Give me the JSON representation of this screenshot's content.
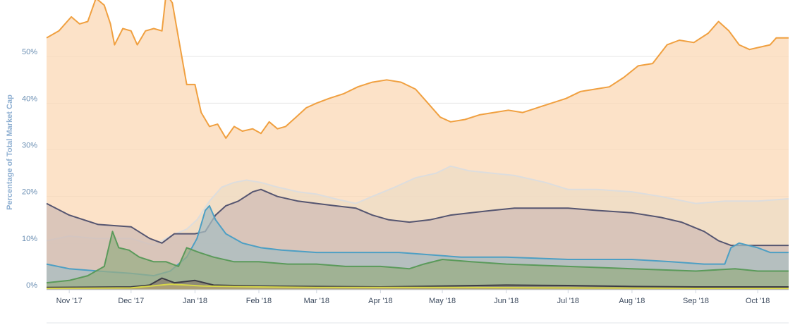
{
  "chart_data": {
    "type": "area",
    "title": "",
    "xlabel": "",
    "ylabel": "Percentage of Total Market Cap",
    "x_ticks": [
      {
        "label": "Nov '17",
        "date": "2017-11-01"
      },
      {
        "label": "Dec '17",
        "date": "2017-12-01"
      },
      {
        "label": "Jan '18",
        "date": "2018-01-01"
      },
      {
        "label": "Feb '18",
        "date": "2018-02-01"
      },
      {
        "label": "Mar '18",
        "date": "2018-03-01"
      },
      {
        "label": "Apr '18",
        "date": "2018-04-01"
      },
      {
        "label": "May '18",
        "date": "2018-05-01"
      },
      {
        "label": "Jun '18",
        "date": "2018-06-01"
      },
      {
        "label": "Jul '18",
        "date": "2018-07-01"
      },
      {
        "label": "Aug '18",
        "date": "2018-08-01"
      },
      {
        "label": "Sep '18",
        "date": "2018-09-01"
      },
      {
        "label": "Oct '18",
        "date": "2018-10-01"
      }
    ],
    "y_ticks": [
      {
        "label": "0%",
        "value": 0
      },
      {
        "label": "10%",
        "value": 10
      },
      {
        "label": "20%",
        "value": 20
      },
      {
        "label": "30%",
        "value": 30
      },
      {
        "label": "40%",
        "value": 40
      },
      {
        "label": "50%",
        "value": 50
      }
    ],
    "xlim": [
      "2017-10-21",
      "2018-10-16"
    ],
    "ylim": [
      0,
      60
    ],
    "grid": "horizontal",
    "legend": "none",
    "series": [
      {
        "color": "#f0a040",
        "fill": "#fbd8b6",
        "points": [
          [
            "2017-10-21",
            54
          ],
          [
            "2017-10-27",
            55.5
          ],
          [
            "2017-11-02",
            58.5
          ],
          [
            "2017-11-06",
            57
          ],
          [
            "2017-11-10",
            57.5
          ],
          [
            "2017-11-14",
            62.5
          ],
          [
            "2017-11-18",
            61
          ],
          [
            "2017-11-21",
            57
          ],
          [
            "2017-11-23",
            52.5
          ],
          [
            "2017-11-27",
            56
          ],
          [
            "2017-12-01",
            55.5
          ],
          [
            "2017-12-04",
            52.5
          ],
          [
            "2017-12-08",
            55.5
          ],
          [
            "2017-12-12",
            56
          ],
          [
            "2017-12-16",
            55.5
          ],
          [
            "2017-12-18",
            63.5
          ],
          [
            "2017-12-21",
            61.5
          ],
          [
            "2017-12-24",
            54
          ],
          [
            "2017-12-28",
            44
          ],
          [
            "2018-01-01",
            44
          ],
          [
            "2018-01-04",
            38
          ],
          [
            "2018-01-08",
            35
          ],
          [
            "2018-01-12",
            35.5
          ],
          [
            "2018-01-16",
            32.5
          ],
          [
            "2018-01-20",
            35
          ],
          [
            "2018-01-24",
            34
          ],
          [
            "2018-01-29",
            34.5
          ],
          [
            "2018-02-02",
            33.5
          ],
          [
            "2018-02-06",
            36
          ],
          [
            "2018-02-10",
            34.5
          ],
          [
            "2018-02-14",
            35
          ],
          [
            "2018-02-19",
            37
          ],
          [
            "2018-02-24",
            39
          ],
          [
            "2018-03-01",
            40
          ],
          [
            "2018-03-07",
            41
          ],
          [
            "2018-03-14",
            42
          ],
          [
            "2018-03-21",
            43.5
          ],
          [
            "2018-03-28",
            44.5
          ],
          [
            "2018-04-04",
            45
          ],
          [
            "2018-04-11",
            44.5
          ],
          [
            "2018-04-18",
            43
          ],
          [
            "2018-04-24",
            40
          ],
          [
            "2018-04-30",
            37
          ],
          [
            "2018-05-05",
            36
          ],
          [
            "2018-05-12",
            36.5
          ],
          [
            "2018-05-19",
            37.5
          ],
          [
            "2018-05-26",
            38
          ],
          [
            "2018-06-02",
            38.5
          ],
          [
            "2018-06-09",
            38
          ],
          [
            "2018-06-16",
            39
          ],
          [
            "2018-06-23",
            40
          ],
          [
            "2018-06-30",
            41
          ],
          [
            "2018-07-07",
            42.5
          ],
          [
            "2018-07-14",
            43
          ],
          [
            "2018-07-21",
            43.5
          ],
          [
            "2018-07-28",
            45.5
          ],
          [
            "2018-08-04",
            48
          ],
          [
            "2018-08-11",
            48.5
          ],
          [
            "2018-08-18",
            52.5
          ],
          [
            "2018-08-24",
            53.5
          ],
          [
            "2018-08-31",
            53
          ],
          [
            "2018-09-07",
            55
          ],
          [
            "2018-09-12",
            57.5
          ],
          [
            "2018-09-17",
            55.5
          ],
          [
            "2018-09-22",
            52.5
          ],
          [
            "2018-09-27",
            51.5
          ],
          [
            "2018-10-02",
            52
          ],
          [
            "2018-10-07",
            52.5
          ],
          [
            "2018-10-10",
            54
          ],
          [
            "2018-10-16",
            54
          ]
        ]
      },
      {
        "color": "#dddddd",
        "fill": "#eedcc6",
        "points": [
          [
            "2017-10-21",
            10.5
          ],
          [
            "2017-11-01",
            11.5
          ],
          [
            "2017-11-14",
            11
          ],
          [
            "2017-12-01",
            11
          ],
          [
            "2017-12-12",
            9.5
          ],
          [
            "2017-12-20",
            11.5
          ],
          [
            "2017-12-28",
            13
          ],
          [
            "2018-01-02",
            15
          ],
          [
            "2018-01-08",
            19
          ],
          [
            "2018-01-14",
            22
          ],
          [
            "2018-01-20",
            23
          ],
          [
            "2018-01-26",
            23.5
          ],
          [
            "2018-02-02",
            23
          ],
          [
            "2018-02-10",
            22
          ],
          [
            "2018-02-20",
            21
          ],
          [
            "2018-03-01",
            20.5
          ],
          [
            "2018-03-10",
            19.5
          ],
          [
            "2018-03-20",
            18.5
          ],
          [
            "2018-03-28",
            20
          ],
          [
            "2018-04-08",
            22
          ],
          [
            "2018-04-18",
            24
          ],
          [
            "2018-04-28",
            25
          ],
          [
            "2018-05-05",
            26.5
          ],
          [
            "2018-05-14",
            25.5
          ],
          [
            "2018-05-25",
            25
          ],
          [
            "2018-06-05",
            24.5
          ],
          [
            "2018-06-20",
            23
          ],
          [
            "2018-07-01",
            21.5
          ],
          [
            "2018-07-15",
            21.5
          ],
          [
            "2018-08-01",
            21
          ],
          [
            "2018-08-15",
            20
          ],
          [
            "2018-09-01",
            18.5
          ],
          [
            "2018-09-15",
            19
          ],
          [
            "2018-10-01",
            19
          ],
          [
            "2018-10-16",
            19.5
          ]
        ]
      },
      {
        "color": "#555570",
        "fill": "#d0bcb6",
        "points": [
          [
            "2017-10-21",
            18.5
          ],
          [
            "2017-11-01",
            16
          ],
          [
            "2017-11-15",
            14
          ],
          [
            "2017-12-01",
            13.5
          ],
          [
            "2017-12-10",
            11
          ],
          [
            "2017-12-16",
            10
          ],
          [
            "2017-12-22",
            12
          ],
          [
            "2018-01-01",
            12
          ],
          [
            "2018-01-06",
            12.5
          ],
          [
            "2018-01-11",
            16
          ],
          [
            "2018-01-16",
            18
          ],
          [
            "2018-01-22",
            19
          ],
          [
            "2018-01-29",
            21
          ],
          [
            "2018-02-02",
            21.5
          ],
          [
            "2018-02-10",
            20
          ],
          [
            "2018-02-20",
            19
          ],
          [
            "2018-03-01",
            18.5
          ],
          [
            "2018-03-10",
            18
          ],
          [
            "2018-03-20",
            17.5
          ],
          [
            "2018-03-28",
            16
          ],
          [
            "2018-04-05",
            15
          ],
          [
            "2018-04-15",
            14.5
          ],
          [
            "2018-04-25",
            15
          ],
          [
            "2018-05-05",
            16
          ],
          [
            "2018-05-15",
            16.5
          ],
          [
            "2018-05-25",
            17
          ],
          [
            "2018-06-05",
            17.5
          ],
          [
            "2018-06-20",
            17.5
          ],
          [
            "2018-07-01",
            17.5
          ],
          [
            "2018-07-15",
            17
          ],
          [
            "2018-08-01",
            16.5
          ],
          [
            "2018-08-15",
            15.5
          ],
          [
            "2018-08-25",
            14.5
          ],
          [
            "2018-09-05",
            12.5
          ],
          [
            "2018-09-12",
            10.5
          ],
          [
            "2018-09-18",
            9.5
          ],
          [
            "2018-10-01",
            9.5
          ],
          [
            "2018-10-16",
            9.5
          ]
        ]
      },
      {
        "color": "#4d9fc4",
        "fill": "#a8bcc0",
        "points": [
          [
            "2017-10-21",
            5.5
          ],
          [
            "2017-11-01",
            4.5
          ],
          [
            "2017-11-15",
            4
          ],
          [
            "2017-12-01",
            3.5
          ],
          [
            "2017-12-12",
            3
          ],
          [
            "2017-12-20",
            4
          ],
          [
            "2017-12-28",
            7
          ],
          [
            "2018-01-02",
            11
          ],
          [
            "2018-01-06",
            17
          ],
          [
            "2018-01-08",
            18
          ],
          [
            "2018-01-11",
            15
          ],
          [
            "2018-01-16",
            12
          ],
          [
            "2018-01-24",
            10
          ],
          [
            "2018-02-02",
            9
          ],
          [
            "2018-02-12",
            8.5
          ],
          [
            "2018-03-01",
            8
          ],
          [
            "2018-03-20",
            8
          ],
          [
            "2018-04-10",
            8
          ],
          [
            "2018-04-25",
            7.5
          ],
          [
            "2018-05-10",
            7
          ],
          [
            "2018-06-01",
            7
          ],
          [
            "2018-07-01",
            6.5
          ],
          [
            "2018-08-01",
            6.5
          ],
          [
            "2018-08-20",
            6
          ],
          [
            "2018-09-05",
            5.5
          ],
          [
            "2018-09-15",
            5.5
          ],
          [
            "2018-09-18",
            9
          ],
          [
            "2018-09-22",
            10
          ],
          [
            "2018-10-01",
            9
          ],
          [
            "2018-10-07",
            8
          ],
          [
            "2018-10-16",
            8
          ]
        ]
      },
      {
        "color": "#5a9a5a",
        "fill": "#9aae86",
        "points": [
          [
            "2017-10-21",
            1.5
          ],
          [
            "2017-11-01",
            2
          ],
          [
            "2017-11-10",
            3
          ],
          [
            "2017-11-18",
            5
          ],
          [
            "2017-11-22",
            12.5
          ],
          [
            "2017-11-25",
            9
          ],
          [
            "2017-11-30",
            8.5
          ],
          [
            "2017-12-05",
            7
          ],
          [
            "2017-12-12",
            6
          ],
          [
            "2017-12-18",
            6
          ],
          [
            "2017-12-24",
            5
          ],
          [
            "2017-12-28",
            9
          ],
          [
            "2018-01-03",
            8
          ],
          [
            "2018-01-10",
            7
          ],
          [
            "2018-01-20",
            6
          ],
          [
            "2018-02-01",
            6
          ],
          [
            "2018-02-15",
            5.5
          ],
          [
            "2018-03-01",
            5.5
          ],
          [
            "2018-03-15",
            5
          ],
          [
            "2018-04-01",
            5
          ],
          [
            "2018-04-15",
            4.5
          ],
          [
            "2018-04-22",
            5.5
          ],
          [
            "2018-05-01",
            6.5
          ],
          [
            "2018-05-15",
            6
          ],
          [
            "2018-06-01",
            5.5
          ],
          [
            "2018-07-01",
            5
          ],
          [
            "2018-08-01",
            4.5
          ],
          [
            "2018-09-01",
            4
          ],
          [
            "2018-09-20",
            4.5
          ],
          [
            "2018-10-01",
            4
          ],
          [
            "2018-10-16",
            4
          ]
        ]
      },
      {
        "color": "#3c3c46",
        "fill": "#887c6e",
        "points": [
          [
            "2017-10-21",
            0.5
          ],
          [
            "2017-12-01",
            0.6
          ],
          [
            "2017-12-10",
            1
          ],
          [
            "2017-12-16",
            2.5
          ],
          [
            "2017-12-22",
            1.5
          ],
          [
            "2018-01-01",
            2
          ],
          [
            "2018-01-10",
            1
          ],
          [
            "2018-02-01",
            0.8
          ],
          [
            "2018-03-01",
            0.7
          ],
          [
            "2018-04-01",
            0.6
          ],
          [
            "2018-05-01",
            0.8
          ],
          [
            "2018-06-01",
            1
          ],
          [
            "2018-07-01",
            0.9
          ],
          [
            "2018-08-01",
            0.7
          ],
          [
            "2018-09-01",
            0.6
          ],
          [
            "2018-10-16",
            0.6
          ]
        ]
      },
      {
        "color": "#d8d84a",
        "fill": "#b4a476",
        "points": [
          [
            "2017-10-21",
            0.3
          ],
          [
            "2017-12-01",
            0.4
          ],
          [
            "2017-12-20",
            1.2
          ],
          [
            "2018-01-05",
            0.8
          ],
          [
            "2018-02-01",
            0.6
          ],
          [
            "2018-03-01",
            0.5
          ],
          [
            "2018-05-01",
            0.5
          ],
          [
            "2018-07-01",
            0.4
          ],
          [
            "2018-09-01",
            0.3
          ],
          [
            "2018-10-16",
            0.3
          ]
        ]
      }
    ]
  }
}
